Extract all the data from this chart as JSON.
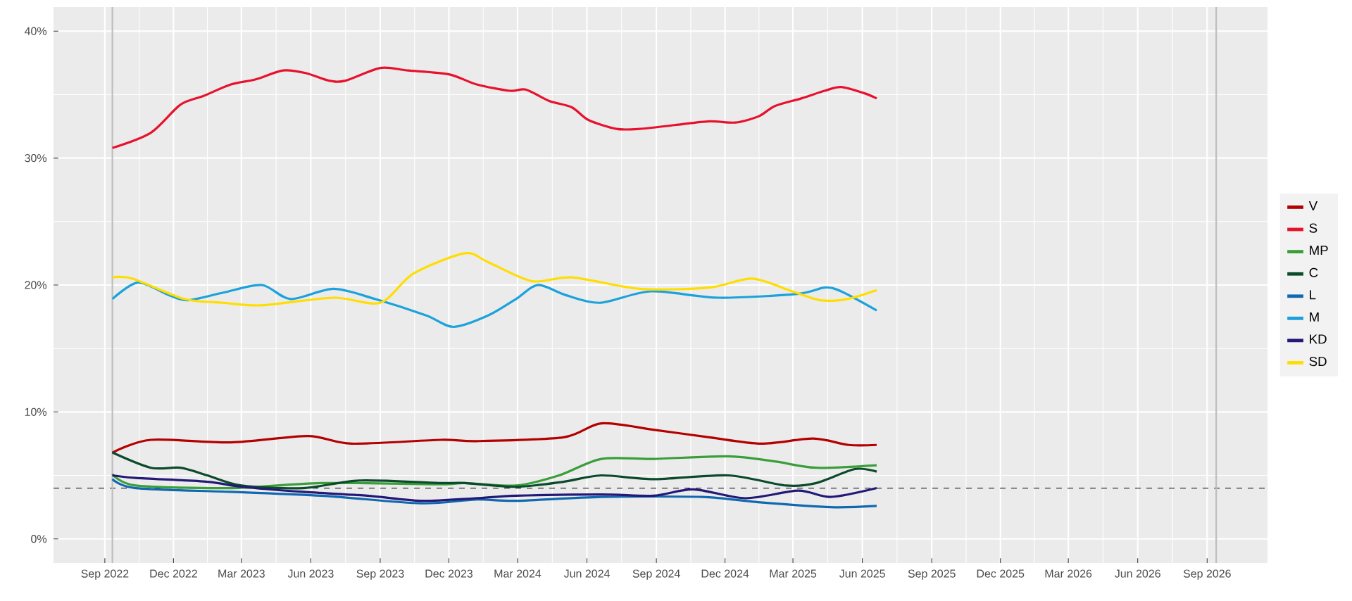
{
  "chart_data": {
    "type": "line",
    "xlim": [
      "2022-06-25",
      "2026-11-20"
    ],
    "ylim": [
      -1.9,
      41.9
    ],
    "xticks": [
      {
        "value": "2022-09-01",
        "label": "Sep 2022"
      },
      {
        "value": "2022-12-01",
        "label": "Dec 2022"
      },
      {
        "value": "2023-03-01",
        "label": "Mar 2023"
      },
      {
        "value": "2023-06-01",
        "label": "Jun 2023"
      },
      {
        "value": "2023-09-01",
        "label": "Sep 2023"
      },
      {
        "value": "2023-12-01",
        "label": "Dec 2023"
      },
      {
        "value": "2024-03-01",
        "label": "Mar 2024"
      },
      {
        "value": "2024-06-01",
        "label": "Jun 2024"
      },
      {
        "value": "2024-09-01",
        "label": "Sep 2024"
      },
      {
        "value": "2024-12-01",
        "label": "Dec 2024"
      },
      {
        "value": "2025-03-01",
        "label": "Mar 2025"
      },
      {
        "value": "2025-06-01",
        "label": "Jun 2025"
      },
      {
        "value": "2025-09-01",
        "label": "Sep 2025"
      },
      {
        "value": "2025-12-01",
        "label": "Dec 2025"
      },
      {
        "value": "2026-03-01",
        "label": "Mar 2026"
      },
      {
        "value": "2026-06-01",
        "label": "Jun 2026"
      },
      {
        "value": "2026-09-01",
        "label": "Sep 2026"
      }
    ],
    "yticks": [
      {
        "value": 0,
        "label": "0%"
      },
      {
        "value": 10,
        "label": "10%"
      },
      {
        "value": 20,
        "label": "20%"
      },
      {
        "value": 30,
        "label": "30%"
      },
      {
        "value": 40,
        "label": "40%"
      }
    ],
    "grid": true,
    "legend": "right",
    "marker": "none",
    "ref_lines": [
      {
        "axis": "y",
        "value": 4,
        "color": "#333333",
        "line_style": "dashed"
      },
      {
        "axis": "x",
        "value": "2022-09-11",
        "color": "#bdbdbd"
      },
      {
        "axis": "x",
        "value": "2026-09-13",
        "color": "#bdbdbd"
      }
    ],
    "series": [
      {
        "name": "V",
        "color": "#b30000",
        "x": [
          "2022-09-11",
          "2022-11-01",
          "2023-02-15",
          "2023-05-28",
          "2023-07-25",
          "2023-11-20",
          "2024-01-07",
          "2024-05-01",
          "2024-06-20",
          "2024-08-28",
          "2024-11-10",
          "2025-01-18",
          "2025-03-28",
          "2025-05-14",
          "2025-06-20"
        ],
        "values": [
          6.8,
          7.8,
          7.6,
          8.1,
          7.5,
          7.8,
          7.7,
          8.0,
          9.1,
          8.6,
          8.0,
          7.5,
          7.9,
          7.4,
          7.4
        ]
      },
      {
        "name": "S",
        "color": "#e8112d",
        "x": [
          "2022-09-11",
          "2022-11-01",
          "2022-12-10",
          "2023-01-10",
          "2023-02-15",
          "2023-03-20",
          "2023-04-25",
          "2023-05-25",
          "2023-06-25",
          "2023-07-17",
          "2023-09-01",
          "2023-10-08",
          "2023-12-01",
          "2024-01-07",
          "2024-02-20",
          "2024-03-12",
          "2024-04-12",
          "2024-05-12",
          "2024-06-03",
          "2024-07-10",
          "2024-08-10",
          "2024-09-25",
          "2024-11-10",
          "2024-12-15",
          "2025-01-15",
          "2025-02-05",
          "2025-03-12",
          "2025-04-12",
          "2025-05-04",
          "2025-06-04",
          "2025-06-20"
        ],
        "values": [
          30.8,
          32.0,
          34.2,
          34.9,
          35.8,
          36.2,
          36.9,
          36.7,
          36.1,
          36.1,
          37.1,
          36.9,
          36.6,
          35.8,
          35.3,
          35.4,
          34.5,
          34.0,
          33.0,
          32.3,
          32.3,
          32.6,
          32.9,
          32.8,
          33.3,
          34.1,
          34.7,
          35.3,
          35.6,
          35.1,
          34.7
        ]
      },
      {
        "name": "MP",
        "color": "#3a9e3a",
        "x": [
          "2022-09-11",
          "2022-10-12",
          "2023-02-15",
          "2023-06-15",
          "2023-11-20",
          "2023-12-22",
          "2024-02-28",
          "2024-04-25",
          "2024-06-20",
          "2024-08-28",
          "2024-12-05",
          "2025-02-05",
          "2025-04-01",
          "2025-06-20"
        ],
        "values": [
          5.1,
          4.2,
          4.0,
          4.4,
          4.3,
          4.4,
          4.2,
          5.0,
          6.3,
          6.3,
          6.5,
          6.1,
          5.6,
          5.8
        ]
      },
      {
        "name": "C",
        "color": "#0b4a2a",
        "x": [
          "2022-09-11",
          "2022-11-01",
          "2022-12-10",
          "2023-01-15",
          "2023-03-01",
          "2023-05-22",
          "2023-08-05",
          "2023-11-20",
          "2023-12-22",
          "2024-02-28",
          "2024-05-01",
          "2024-06-20",
          "2024-08-28",
          "2024-12-05",
          "2025-02-20",
          "2025-04-01",
          "2025-05-22",
          "2025-06-20"
        ],
        "values": [
          6.8,
          5.6,
          5.6,
          5.0,
          4.2,
          4.0,
          4.6,
          4.4,
          4.4,
          4.1,
          4.5,
          5.0,
          4.7,
          5.0,
          4.2,
          4.4,
          5.5,
          5.3
        ]
      },
      {
        "name": "L",
        "color": "#1069b0",
        "x": [
          "2022-09-11",
          "2022-10-12",
          "2023-02-15",
          "2023-06-15",
          "2023-10-25",
          "2024-01-05",
          "2024-02-28",
          "2024-06-20",
          "2024-11-01",
          "2025-01-12",
          "2025-04-20",
          "2025-06-20"
        ],
        "values": [
          4.7,
          4.0,
          3.7,
          3.4,
          2.8,
          3.1,
          3.0,
          3.3,
          3.3,
          2.9,
          2.5,
          2.6
        ]
      },
      {
        "name": "M",
        "color": "#1ba2dc",
        "x": [
          "2022-09-11",
          "2022-10-15",
          "2022-11-25",
          "2022-12-20",
          "2023-02-05",
          "2023-03-28",
          "2023-05-05",
          "2023-07-01",
          "2023-08-25",
          "2023-11-01",
          "2023-12-07",
          "2024-01-22",
          "2024-02-28",
          "2024-03-28",
          "2024-05-04",
          "2024-06-18",
          "2024-08-25",
          "2024-11-22",
          "2025-03-07",
          "2025-04-12",
          "2025-05-04",
          "2025-06-20"
        ],
        "values": [
          18.9,
          20.2,
          19.2,
          18.8,
          19.4,
          20.0,
          18.9,
          19.7,
          18.9,
          17.6,
          16.7,
          17.6,
          18.9,
          20.0,
          19.2,
          18.6,
          19.5,
          19.0,
          19.3,
          19.8,
          19.5,
          18.0
        ]
      },
      {
        "name": "KD",
        "color": "#231977",
        "x": [
          "2022-09-11",
          "2022-10-12",
          "2023-01-15",
          "2023-03-01",
          "2023-05-22",
          "2023-08-15",
          "2023-10-25",
          "2024-01-05",
          "2024-02-28",
          "2024-06-20",
          "2024-08-28",
          "2024-10-20",
          "2024-12-28",
          "2025-03-08",
          "2025-04-20",
          "2025-06-20"
        ],
        "values": [
          5.0,
          4.8,
          4.5,
          4.1,
          3.7,
          3.4,
          3.0,
          3.2,
          3.4,
          3.5,
          3.4,
          3.9,
          3.2,
          3.8,
          3.3,
          4.0
        ]
      },
      {
        "name": "SD",
        "color": "#ffdd00",
        "x": [
          "2022-09-11",
          "2022-10-08",
          "2022-12-15",
          "2023-02-05",
          "2023-03-28",
          "2023-07-01",
          "2023-09-01",
          "2023-10-15",
          "2023-12-22",
          "2024-01-22",
          "2024-03-20",
          "2024-05-12",
          "2024-08-10",
          "2024-11-10",
          "2025-01-06",
          "2025-02-28",
          "2025-04-06",
          "2025-05-12",
          "2025-06-20"
        ],
        "values": [
          20.6,
          20.5,
          18.9,
          18.6,
          18.4,
          19.0,
          18.6,
          20.9,
          22.5,
          21.8,
          20.3,
          20.6,
          19.7,
          19.8,
          20.5,
          19.5,
          18.8,
          18.9,
          19.6
        ]
      }
    ]
  }
}
